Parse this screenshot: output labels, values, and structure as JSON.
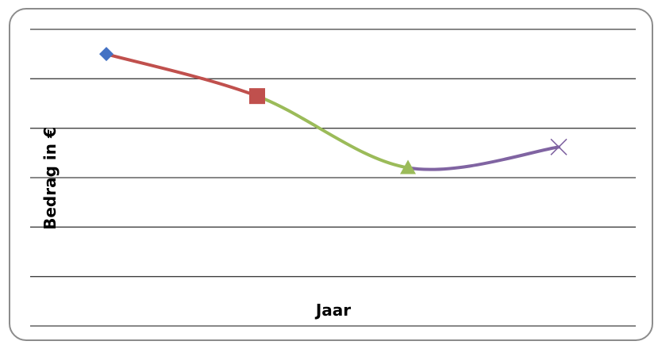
{
  "chart_data": {
    "type": "line",
    "title": "",
    "xlabel": "Jaar",
    "ylabel": "Bedrag in €",
    "categories": [
      "",
      "",
      "",
      ""
    ],
    "values": [
      5.5,
      4.65,
      3.2,
      3.62
    ],
    "ylim": [
      0,
      6
    ],
    "grid": true,
    "legend": "none",
    "points": [
      {
        "marker": "diamond",
        "color": "#4472C4"
      },
      {
        "marker": "square",
        "color": "#C0504D"
      },
      {
        "marker": "triangle",
        "color": "#9BBB59"
      },
      {
        "marker": "x",
        "color": "#8064A2"
      }
    ],
    "segment_colors": [
      "#C0504D",
      "#9BBB59",
      "#8064A2"
    ],
    "gridline_color": "#404040"
  }
}
